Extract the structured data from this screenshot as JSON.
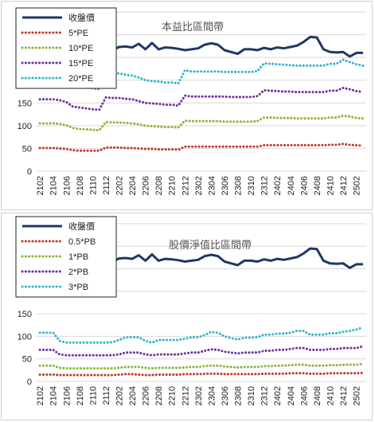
{
  "charts": [
    {
      "id": "pe",
      "type": "line",
      "title": "本益比區間帶",
      "ylim": [
        0,
        350
      ],
      "yticks": [
        0,
        50,
        100,
        150,
        200,
        250,
        300,
        350
      ],
      "categories": [
        "2102",
        "2103",
        "2104",
        "2105",
        "2106",
        "2107",
        "2108",
        "2109",
        "2110",
        "2111",
        "2112",
        "2201",
        "2202",
        "2203",
        "2204",
        "2205",
        "2206",
        "2207",
        "2208",
        "2209",
        "2210",
        "2211",
        "2212",
        "2301",
        "2302",
        "2303",
        "2304",
        "2305",
        "2306",
        "2307",
        "2308",
        "2309",
        "2310",
        "2311",
        "2312",
        "2401",
        "2402",
        "2403",
        "2404",
        "2405",
        "2406",
        "2407",
        "2408",
        "2409",
        "2410",
        "2411",
        "2412",
        "2501",
        "2502",
        "2503"
      ],
      "xtick_labels": [
        "2102",
        "2104",
        "2106",
        "2108",
        "2110",
        "2112",
        "2202",
        "2204",
        "2206",
        "2208",
        "2210",
        "2212",
        "2302",
        "2304",
        "2306",
        "2308",
        "2310",
        "2312",
        "2402",
        "2404",
        "2406",
        "2408",
        "2410",
        "2412",
        "2502"
      ],
      "series": [
        {
          "name": "收盤價",
          "color": "#1f3864",
          "style": "solid",
          "values": [
            282,
            283,
            283,
            279,
            278,
            272,
            270,
            268,
            266,
            265,
            268,
            266,
            273,
            274,
            272,
            280,
            268,
            282,
            268,
            272,
            271,
            269,
            266,
            268,
            270,
            278,
            281,
            278,
            266,
            262,
            258,
            268,
            268,
            266,
            271,
            268,
            272,
            270,
            273,
            276,
            284,
            295,
            294,
            268,
            262,
            261,
            262,
            252,
            260,
            260
          ]
        },
        {
          "name": "5*PE",
          "color": "#c0392b",
          "style": "dot",
          "values": [
            51,
            51,
            51,
            50,
            49,
            46,
            45,
            45,
            45,
            45,
            52,
            52,
            52,
            51,
            51,
            50,
            49,
            49,
            48,
            48,
            48,
            47,
            54,
            54,
            54,
            54,
            54,
            54,
            54,
            54,
            54,
            54,
            54,
            54,
            57,
            57,
            57,
            57,
            57,
            57,
            57,
            57,
            57,
            57,
            58,
            58,
            60,
            58,
            57,
            56
          ]
        },
        {
          "name": "10*PE",
          "color": "#8db33a",
          "style": "dot",
          "values": [
            105,
            105,
            105,
            104,
            101,
            95,
            93,
            92,
            91,
            90,
            108,
            107,
            107,
            106,
            105,
            103,
            100,
            99,
            98,
            97,
            97,
            96,
            111,
            110,
            110,
            110,
            110,
            110,
            109,
            109,
            109,
            109,
            109,
            110,
            118,
            118,
            117,
            117,
            117,
            116,
            116,
            116,
            116,
            116,
            118,
            118,
            122,
            120,
            117,
            116
          ]
        },
        {
          "name": "15*PE",
          "color": "#7030a0",
          "style": "dot",
          "values": [
            158,
            158,
            158,
            156,
            152,
            142,
            140,
            138,
            136,
            135,
            162,
            161,
            161,
            159,
            158,
            154,
            150,
            149,
            148,
            146,
            146,
            144,
            166,
            164,
            164,
            164,
            164,
            164,
            164,
            163,
            163,
            163,
            163,
            165,
            178,
            177,
            176,
            175,
            175,
            174,
            174,
            174,
            174,
            174,
            177,
            177,
            183,
            180,
            176,
            174
          ]
        },
        {
          "name": "20*PE",
          "color": "#33b5cc",
          "style": "dot",
          "values": [
            211,
            211,
            211,
            208,
            202,
            190,
            187,
            184,
            182,
            180,
            216,
            215,
            215,
            212,
            210,
            206,
            200,
            198,
            197,
            195,
            195,
            193,
            222,
            219,
            219,
            219,
            219,
            219,
            218,
            218,
            218,
            218,
            218,
            220,
            237,
            236,
            235,
            234,
            233,
            232,
            232,
            232,
            232,
            232,
            236,
            236,
            245,
            240,
            235,
            232
          ]
        }
      ]
    },
    {
      "id": "pb",
      "type": "line",
      "title": "股價淨值比區間帶",
      "ylim": [
        0,
        350
      ],
      "yticks": [
        0,
        50,
        100,
        150,
        200,
        250,
        300,
        350
      ],
      "categories": [
        "2102",
        "2103",
        "2104",
        "2105",
        "2106",
        "2107",
        "2108",
        "2109",
        "2110",
        "2111",
        "2112",
        "2201",
        "2202",
        "2203",
        "2204",
        "2205",
        "2206",
        "2207",
        "2208",
        "2209",
        "2210",
        "2211",
        "2212",
        "2301",
        "2302",
        "2303",
        "2304",
        "2305",
        "2306",
        "2307",
        "2308",
        "2309",
        "2310",
        "2311",
        "2312",
        "2401",
        "2402",
        "2403",
        "2404",
        "2405",
        "2406",
        "2407",
        "2408",
        "2409",
        "2410",
        "2411",
        "2412",
        "2501",
        "2502",
        "2503"
      ],
      "xtick_labels": [
        "2102",
        "2104",
        "2106",
        "2108",
        "2110",
        "2112",
        "2202",
        "2204",
        "2206",
        "2208",
        "2210",
        "2212",
        "2302",
        "2304",
        "2306",
        "2308",
        "2310",
        "2312",
        "2402",
        "2404",
        "2406",
        "2408",
        "2410",
        "2412",
        "2502"
      ],
      "series": [
        {
          "name": "收盤價",
          "color": "#1f3864",
          "style": "solid",
          "values": [
            282,
            283,
            283,
            279,
            278,
            272,
            270,
            268,
            266,
            265,
            268,
            266,
            273,
            274,
            272,
            280,
            268,
            282,
            268,
            272,
            271,
            269,
            266,
            268,
            270,
            278,
            281,
            278,
            266,
            262,
            258,
            268,
            268,
            266,
            271,
            268,
            272,
            270,
            273,
            276,
            284,
            295,
            294,
            268,
            262,
            261,
            262,
            252,
            260,
            260
          ]
        },
        {
          "name": "0.5*PB",
          "color": "#c0392b",
          "style": "dot",
          "values": [
            15,
            15,
            15,
            14,
            14,
            14,
            14,
            14,
            14,
            14,
            14,
            14,
            15,
            16,
            16,
            15,
            14,
            14,
            15,
            15,
            15,
            15,
            16,
            16,
            16,
            17,
            17,
            17,
            16,
            16,
            16,
            16,
            16,
            16,
            17,
            17,
            17,
            17,
            18,
            18,
            18,
            17,
            17,
            17,
            18,
            18,
            18,
            18,
            18,
            19
          ]
        },
        {
          "name": "1*PB",
          "color": "#8db33a",
          "style": "dot",
          "values": [
            35,
            35,
            35,
            30,
            29,
            29,
            29,
            29,
            29,
            29,
            29,
            29,
            30,
            32,
            32,
            32,
            30,
            29,
            30,
            30,
            30,
            30,
            31,
            32,
            32,
            34,
            35,
            35,
            33,
            32,
            31,
            32,
            32,
            32,
            34,
            34,
            35,
            35,
            36,
            37,
            37,
            35,
            35,
            35,
            36,
            36,
            37,
            37,
            37,
            39
          ]
        },
        {
          "name": "2*PB",
          "color": "#7030a0",
          "style": "dot",
          "values": [
            70,
            70,
            70,
            60,
            58,
            58,
            58,
            58,
            58,
            58,
            58,
            58,
            60,
            64,
            64,
            64,
            60,
            58,
            60,
            60,
            60,
            60,
            62,
            64,
            64,
            68,
            71,
            70,
            66,
            64,
            62,
            64,
            64,
            64,
            68,
            68,
            70,
            70,
            72,
            74,
            74,
            70,
            70,
            70,
            72,
            72,
            74,
            74,
            74,
            78
          ]
        },
        {
          "name": "3*PB",
          "color": "#33b5cc",
          "style": "dot",
          "values": [
            108,
            108,
            108,
            90,
            86,
            86,
            86,
            86,
            86,
            86,
            86,
            87,
            92,
            98,
            98,
            98,
            90,
            86,
            92,
            92,
            92,
            92,
            95,
            98,
            98,
            103,
            110,
            108,
            100,
            96,
            93,
            97,
            97,
            98,
            104,
            104,
            106,
            106,
            108,
            112,
            112,
            104,
            104,
            104,
            107,
            107,
            110,
            112,
            115,
            120
          ]
        }
      ]
    }
  ]
}
